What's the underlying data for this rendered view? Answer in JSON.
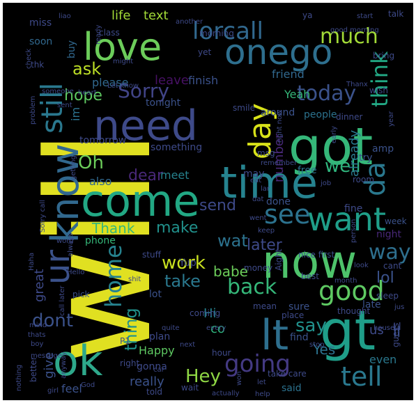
{
  "canvas": {
    "background": "#000000",
    "frame": "#ffffff"
  },
  "words": [
    {
      "text": "will",
      "color": "#e0e021"
    },
    {
      "text": "ok",
      "color": "#2ea88b"
    },
    {
      "text": "now",
      "color": "#4ec36b"
    },
    {
      "text": "lt",
      "color": "#2e6f8e"
    },
    {
      "text": "gt",
      "color": "#1f9e89"
    },
    {
      "text": "got",
      "color": "#35b779"
    },
    {
      "text": "time",
      "color": "#26838f"
    },
    {
      "text": "come",
      "color": "#22a884"
    },
    {
      "text": "need",
      "color": "#3e4a89"
    },
    {
      "text": "love",
      "color": "#6ccd5a"
    },
    {
      "text": "onego",
      "color": "#2e6f8e"
    },
    {
      "text": "know",
      "color": "#31688e"
    },
    {
      "text": "ur",
      "color": "#3b528b"
    },
    {
      "text": "want",
      "color": "#1f9e89"
    },
    {
      "text": "going",
      "color": "#443a83"
    },
    {
      "text": "good",
      "color": "#5ec962"
    },
    {
      "text": "tell",
      "color": "#2a788e"
    },
    {
      "text": "day",
      "color": "#d8e219"
    },
    {
      "text": "home",
      "color": "#26828e"
    },
    {
      "text": "da",
      "color": "#2a788e"
    },
    {
      "text": "still",
      "color": "#2a788e"
    },
    {
      "text": "lorcall",
      "color": "#31688e"
    },
    {
      "text": "today",
      "color": "#3b528b"
    },
    {
      "text": "think",
      "color": "#22a884"
    },
    {
      "text": "see",
      "color": "#2c728e"
    },
    {
      "text": "much",
      "color": "#a2da37"
    },
    {
      "text": "way",
      "color": "#2e6f8e"
    },
    {
      "text": "back",
      "color": "#35b779"
    },
    {
      "text": "dont",
      "color": "#3b528b"
    },
    {
      "text": "Hey",
      "color": "#8fd744"
    },
    {
      "text": "say",
      "color": "#21918c"
    },
    {
      "text": "take",
      "color": "#2a788e"
    },
    {
      "text": "Sorry",
      "color": "#414487"
    },
    {
      "text": "work",
      "color": "#c8e020"
    },
    {
      "text": "make",
      "color": "#21918c"
    },
    {
      "text": "wat",
      "color": "#2c728e"
    },
    {
      "text": "later",
      "color": "#3e4a89"
    },
    {
      "text": "thing",
      "color": "#21918c"
    },
    {
      "text": "ask",
      "color": "#bddf26"
    },
    {
      "text": "hope",
      "color": "#5ec962"
    },
    {
      "text": "Oh",
      "color": "#6ccd5a"
    },
    {
      "text": "dear",
      "color": "#482878"
    },
    {
      "text": "well",
      "color": "#2fb47c"
    },
    {
      "text": "send",
      "color": "#3e4a89"
    },
    {
      "text": "Thank",
      "color": "#35b779"
    },
    {
      "text": "life",
      "color": "#a2da37"
    },
    {
      "text": "text",
      "color": "#a2da37"
    },
    {
      "text": "lol",
      "color": "#3b528b"
    },
    {
      "text": "Yes",
      "color": "#2c728e"
    },
    {
      "text": "give",
      "color": "#3b528b"
    },
    {
      "text": "already",
      "color": "#2a788e"
    },
    {
      "text": "number",
      "color": "#482878"
    },
    {
      "text": "great",
      "color": "#3e4a89"
    },
    {
      "text": "babe",
      "color": "#6ccd5a"
    },
    {
      "text": "really",
      "color": "#3b528b"
    },
    {
      "text": "Happy",
      "color": "#5ec962"
    },
    {
      "text": "friend",
      "color": "#31688e"
    },
    {
      "text": "please",
      "color": "#31688e"
    },
    {
      "text": "leave",
      "color": "#471164"
    },
    {
      "text": "finish",
      "color": "#3b528b"
    },
    {
      "text": "miss",
      "color": "#3e4a89"
    },
    {
      "text": "soon",
      "color": "#31688e"
    },
    {
      "text": "tonight",
      "color": "#3b528b"
    },
    {
      "text": "tomorrow",
      "color": "#3e4a89"
    },
    {
      "text": "something",
      "color": "#3e4a89"
    },
    {
      "text": "meet",
      "color": "#26828e"
    },
    {
      "text": "also",
      "color": "#31688e"
    },
    {
      "text": "around",
      "color": "#3b528b"
    },
    {
      "text": "people",
      "color": "#2c728e"
    },
    {
      "text": "Yeah",
      "color": "#35b779"
    },
    {
      "text": "phone",
      "color": "#35b779"
    },
    {
      "text": "gonna",
      "color": "#3e4a89"
    },
    {
      "text": "said",
      "color": "#2c728e"
    },
    {
      "text": "feel",
      "color": "#3b528b"
    },
    {
      "text": "even",
      "color": "#2a788e"
    },
    {
      "text": "sure",
      "color": "#3b528b"
    },
    {
      "text": "Hi",
      "color": "#26828e"
    },
    {
      "text": "co",
      "color": "#2fb47c"
    },
    {
      "text": "fine",
      "color": "#3e4a89"
    },
    {
      "text": "late",
      "color": "#3b528b"
    },
    {
      "text": "night",
      "color": "#482878"
    },
    {
      "text": "im",
      "color": "#2c728e"
    },
    {
      "text": "told",
      "color": "#3e4a89"
    },
    {
      "text": "amp",
      "color": "#3b528b"
    },
    {
      "text": "try",
      "color": "#3b528b"
    },
    {
      "text": "plan",
      "color": "#3e4a89"
    },
    {
      "text": "lot",
      "color": "#3b528b"
    },
    {
      "text": "pick",
      "color": "#3b528b"
    },
    {
      "text": "find",
      "color": "#3b528b"
    },
    {
      "text": "buy",
      "color": "#31688e"
    },
    {
      "text": "yet",
      "color": "#3e4a89"
    },
    {
      "text": "ll",
      "color": "#3b528b"
    },
    {
      "text": "us",
      "color": "#3e4a89"
    },
    {
      "text": "Yup",
      "color": "#3e4a89"
    },
    {
      "text": "done",
      "color": "#3b528b"
    },
    {
      "text": "free",
      "color": "#2c728e"
    },
    {
      "text": "may",
      "color": "#3e4a89"
    },
    {
      "text": "cant",
      "color": "#3e4a89"
    },
    {
      "text": "week",
      "color": "#3b528b"
    },
    {
      "text": "sleep",
      "color": "#3e4a89"
    },
    {
      "text": "place",
      "color": "#3e4a89"
    },
    {
      "text": "stuff",
      "color": "#3e4a89"
    },
    {
      "text": "nice first",
      "color": "#3b528b"
    },
    {
      "text": "Aight",
      "color": "#3e4a89"
    },
    {
      "text": "coming",
      "color": "#3e4a89"
    },
    {
      "text": "right",
      "color": "#3e4a89"
    },
    {
      "text": "wait",
      "color": "#3e4a89"
    },
    {
      "text": "hour",
      "color": "#3e4a89"
    },
    {
      "text": "take care",
      "color": "#3e4a89"
    },
    {
      "text": "thought",
      "color": "#3e4a89"
    },
    {
      "text": "best",
      "color": "#3e4a89"
    },
    {
      "text": "money",
      "color": "#3e4a89"
    },
    {
      "text": "mean",
      "color": "#3e4a89"
    },
    {
      "text": "better",
      "color": "#3e4a89"
    },
    {
      "text": "guess",
      "color": "#3e4a89"
    },
    {
      "text": "talk",
      "color": "#3e4a89"
    },
    {
      "text": "class",
      "color": "#3e4a89"
    },
    {
      "text": "morning",
      "color": "#3e4a89"
    },
    {
      "text": "good morning",
      "color": "#3e4a89"
    },
    {
      "text": "bring",
      "color": "#3e4a89"
    },
    {
      "text": "wish",
      "color": "#3e4a89"
    },
    {
      "text": "room",
      "color": "#3e4a89"
    },
    {
      "text": "dinner",
      "color": "#3e4a89"
    },
    {
      "text": "Let know",
      "color": "#3e4a89"
    },
    {
      "text": "right now",
      "color": "#3e4a89"
    },
    {
      "text": "smile",
      "color": "#3e4a89"
    },
    {
      "text": "problem",
      "color": "#3e4a89"
    },
    {
      "text": "Sorry call",
      "color": "#3e4a89"
    },
    {
      "text": "nothing",
      "color": "#3e4a89"
    },
    {
      "text": "Haha",
      "color": "#3e4a89"
    },
    {
      "text": "message",
      "color": "#3e4a89"
    },
    {
      "text": "mind",
      "color": "#3e4a89"
    },
    {
      "text": "call later",
      "color": "#3e4a89"
    },
    {
      "text": "always",
      "color": "#3e4a89"
    },
    {
      "text": "Hello",
      "color": "#3e4a89"
    },
    {
      "text": "word",
      "color": "#3e4a89"
    },
    {
      "text": "heart",
      "color": "#3e4a89"
    },
    {
      "text": "thk",
      "color": "#3e4a89"
    },
    {
      "text": "someone",
      "color": "#3e4a89"
    },
    {
      "text": "check",
      "color": "#3e4a89"
    },
    {
      "text": "ready",
      "color": "#3e4a89"
    },
    {
      "text": "might",
      "color": "#3e4a89"
    },
    {
      "text": "Thanx",
      "color": "#3e4a89"
    },
    {
      "text": "start",
      "color": "#3e4a89"
    },
    {
      "text": "ya",
      "color": "#3e4a89"
    },
    {
      "text": "liao",
      "color": "#3e4a89"
    },
    {
      "text": "another",
      "color": "#3e4a89"
    },
    {
      "text": "every",
      "color": "#3e4a89"
    },
    {
      "text": "next",
      "color": "#3e4a89"
    },
    {
      "text": "house",
      "color": "#3e4a89"
    },
    {
      "text": "stop",
      "color": "#3e4a89"
    },
    {
      "text": "quite",
      "color": "#3e4a89"
    },
    {
      "text": "car",
      "color": "#3e4a89"
    },
    {
      "text": "God",
      "color": "#3e4a89"
    },
    {
      "text": "girl",
      "color": "#3e4a89"
    },
    {
      "text": "anyway",
      "color": "#3e4a89"
    },
    {
      "text": "actually",
      "color": "#3e4a89"
    },
    {
      "text": "help",
      "color": "#3e4a89"
    },
    {
      "text": "won",
      "color": "#3e4a89"
    },
    {
      "text": "let",
      "color": "#3e4a89"
    },
    {
      "text": "keep",
      "color": "#3e4a89"
    },
    {
      "text": "went",
      "color": "#3e4a89"
    },
    {
      "text": "dat",
      "color": "#3e4a89"
    },
    {
      "text": "lar",
      "color": "#3e4a89"
    },
    {
      "text": "eat",
      "color": "#3e4a89"
    },
    {
      "text": "job",
      "color": "#3e4a89"
    },
    {
      "text": "getting",
      "color": "#3e4a89"
    },
    {
      "text": "remember",
      "color": "#3e4a89"
    },
    {
      "text": "month",
      "color": "#3e4a89"
    },
    {
      "text": "look",
      "color": "#3e4a89"
    },
    {
      "text": "person",
      "color": "#3e4a89"
    },
    {
      "text": "year",
      "color": "#3e4a89"
    },
    {
      "text": "early",
      "color": "#3e4a89"
    },
    {
      "text": "boy",
      "color": "#3e4a89"
    },
    {
      "text": "thats",
      "color": "#3e4a89"
    },
    {
      "text": "jus",
      "color": "#3e4a89"
    },
    {
      "text": "shit",
      "color": "#3e4a89"
    },
    {
      "text": "P1",
      "color": "#3e4a89"
    },
    {
      "text": "msg",
      "color": "#3e4a89"
    },
    {
      "text": "sent",
      "color": "#3e4a89"
    },
    {
      "text": "Ll",
      "color": "#3e4a89"
    }
  ]
}
